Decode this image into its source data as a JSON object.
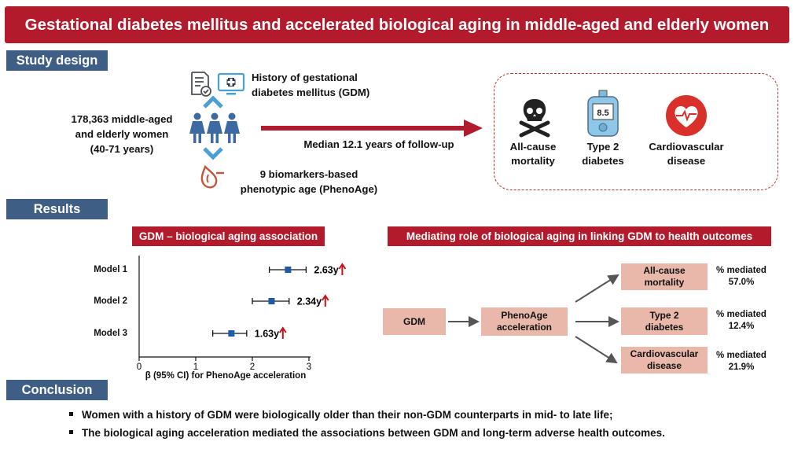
{
  "title": "Gestational diabetes mellitus and accelerated biological aging in middle-aged and elderly women",
  "sections": {
    "study_design": "Study design",
    "results": "Results",
    "conclusion": "Conclusion"
  },
  "study_design": {
    "population": [
      "178,363 middle-aged",
      "and elderly women",
      "(40-71 years)"
    ],
    "exposure": [
      "History of gestational",
      "diabetes mellitus (GDM)"
    ],
    "biomarker": [
      "9 biomarkers-based",
      "phenotypic age (PhenoAge)"
    ],
    "follow_up": "Median 12.1 years of follow-up",
    "outcomes": [
      {
        "lines": [
          "All-cause",
          "mortality"
        ],
        "icon": "skull-crossbones-icon"
      },
      {
        "lines": [
          "Type 2",
          "diabetes"
        ],
        "icon": "glucose-meter-icon",
        "meter_value": "8.5"
      },
      {
        "lines": [
          "Cardiovascular",
          "disease"
        ],
        "icon": "heart-icon"
      }
    ],
    "icons": [
      "document-check-icon",
      "monitor-plus-icon",
      "chevron-up-icon",
      "women-group-icon",
      "chevron-down-icon",
      "blood-drop-icon",
      "arrow-right-icon"
    ]
  },
  "results": {
    "association_title": "GDM – biological aging association",
    "mediation_title": "Mediating role of biological aging in linking GDM to health outcomes"
  },
  "chart_data": {
    "type": "forest",
    "categories": [
      "Model 1",
      "Model 2",
      "Model 3"
    ],
    "values": [
      2.63,
      2.34,
      1.63
    ],
    "ci_low": [
      2.3,
      2.0,
      1.3
    ],
    "ci_high": [
      2.95,
      2.65,
      1.9
    ],
    "value_labels": [
      "2.63y",
      "2.34y",
      "1.63y"
    ],
    "xlabel": "β (95% CI) for PhenoAge acceleration",
    "xlim": [
      0,
      3
    ],
    "xticks": [
      "0",
      "1",
      "2",
      "3"
    ],
    "grid": false,
    "marker_color": "#1f5aa6",
    "up_arrow_color": "#c0141c"
  },
  "mediation": {
    "exposure": "GDM",
    "mediator": [
      "PhenoAge",
      "acceleration"
    ],
    "outcomes": [
      {
        "lines": [
          "All-cause",
          "mortality"
        ],
        "pct_label": "% mediated",
        "pct": "57.0%"
      },
      {
        "lines": [
          "Type 2",
          "diabetes"
        ],
        "pct_label": "% mediated",
        "pct": "12.4%"
      },
      {
        "lines": [
          "Cardiovascular",
          "disease"
        ],
        "pct_label": "% mediated",
        "pct": "21.9%"
      }
    ]
  },
  "conclusion": [
    "Women with a history of GDM were biologically older than their non-GDM counterparts in mid- to late life;",
    "The biological aging acceleration mediated the associations between GDM and long-term adverse health outcomes."
  ],
  "colors": {
    "banner": "#b31b2c",
    "section_label": "#3f5e86",
    "icon_blue": "#3e6aa3",
    "icon_light_blue": "#4aa0d8",
    "pink_box": "#e9b8ab",
    "arrow_red": "#b01c2e",
    "dashed_border": "#b23227"
  }
}
